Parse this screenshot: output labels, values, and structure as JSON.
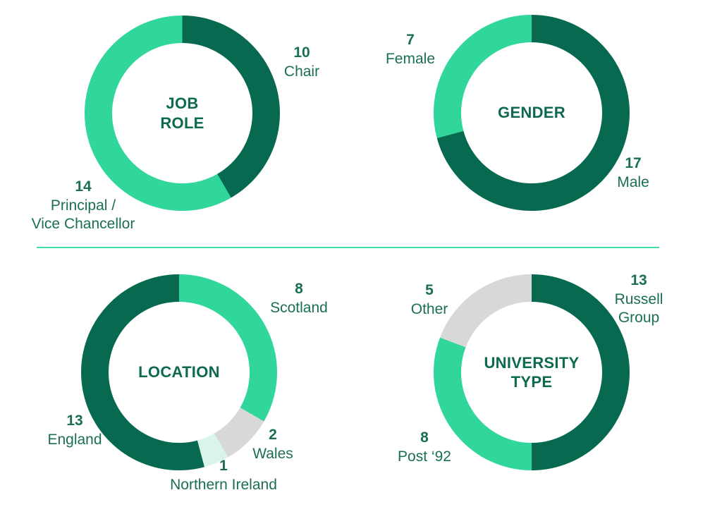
{
  "colors": {
    "background": "#ffffff",
    "dark-green": "#076a50",
    "bright-green": "#30d69a",
    "gray": "#d8d8d8",
    "pale-mint": "#d9f4e8",
    "label-text": "#1a6e56",
    "center-text": "#0d6a50",
    "divider": "#40dfa4"
  },
  "chart_data": [
    {
      "type": "pie",
      "donut": true,
      "title": "JOB ROLE",
      "title_lines": "JOB\nROLE",
      "start_angle_deg": 0,
      "direction": "clockwise",
      "total": 24,
      "segments": [
        {
          "label": "Chair",
          "value": 10,
          "color": "#076a50"
        },
        {
          "label": "Principal /\nVice Chancellor",
          "value": 14,
          "color": "#30d69a"
        }
      ]
    },
    {
      "type": "pie",
      "donut": true,
      "title": "GENDER",
      "title_lines": "GENDER",
      "start_angle_deg": 0,
      "direction": "clockwise",
      "total": 24,
      "segments": [
        {
          "label": "Male",
          "value": 17,
          "color": "#076a50"
        },
        {
          "label": "Female",
          "value": 7,
          "color": "#30d69a"
        }
      ]
    },
    {
      "type": "pie",
      "donut": true,
      "title": "LOCATION",
      "title_lines": "LOCATION",
      "start_angle_deg": 0,
      "direction": "clockwise",
      "total": 24,
      "segments": [
        {
          "label": "Scotland",
          "value": 8,
          "color": "#30d69a"
        },
        {
          "label": "Wales",
          "value": 2,
          "color": "#d8d8d8"
        },
        {
          "label": "Northern Ireland",
          "value": 1,
          "color": "#d9f4e8"
        },
        {
          "label": "England",
          "value": 13,
          "color": "#076a50"
        }
      ]
    },
    {
      "type": "pie",
      "donut": true,
      "title": "UNIVERSITY TYPE",
      "title_lines": "UNIVERSITY\nTYPE",
      "start_angle_deg": 0,
      "direction": "clockwise",
      "total": 26,
      "segments": [
        {
          "label": "Russell\nGroup",
          "value": 13,
          "color": "#076a50"
        },
        {
          "label": "Post ‘92",
          "value": 8,
          "color": "#30d69a"
        },
        {
          "label": "Other",
          "value": 5,
          "color": "#d8d8d8"
        }
      ]
    }
  ]
}
